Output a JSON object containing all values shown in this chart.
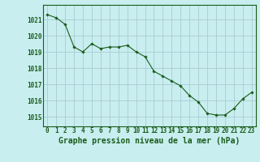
{
  "x": [
    0,
    1,
    2,
    3,
    4,
    5,
    6,
    7,
    8,
    9,
    10,
    11,
    12,
    13,
    14,
    15,
    16,
    17,
    18,
    19,
    20,
    21,
    22,
    23
  ],
  "y": [
    1021.3,
    1021.1,
    1020.7,
    1019.3,
    1019.0,
    1019.5,
    1019.2,
    1019.3,
    1019.3,
    1019.4,
    1019.0,
    1018.7,
    1017.8,
    1017.5,
    1017.2,
    1016.9,
    1016.3,
    1015.9,
    1015.2,
    1015.1,
    1015.1,
    1015.5,
    1016.1,
    1016.5
  ],
  "line_color": "#1a5c1a",
  "marker_color": "#1a5c1a",
  "bg_color": "#c8eef0",
  "grid_color": "#aaccd0",
  "title": "Graphe pression niveau de la mer (hPa)",
  "xlabel_ticks": [
    "0",
    "1",
    "2",
    "3",
    "4",
    "5",
    "6",
    "7",
    "8",
    "9",
    "10",
    "11",
    "12",
    "13",
    "14",
    "15",
    "16",
    "17",
    "18",
    "19",
    "20",
    "21",
    "22",
    "23"
  ],
  "yticks": [
    1015,
    1016,
    1017,
    1018,
    1019,
    1020,
    1021
  ],
  "ylim": [
    1014.4,
    1021.9
  ],
  "xlim": [
    -0.5,
    23.5
  ],
  "title_fontsize": 7.0,
  "tick_fontsize": 5.5,
  "title_color": "#1a5c1a"
}
